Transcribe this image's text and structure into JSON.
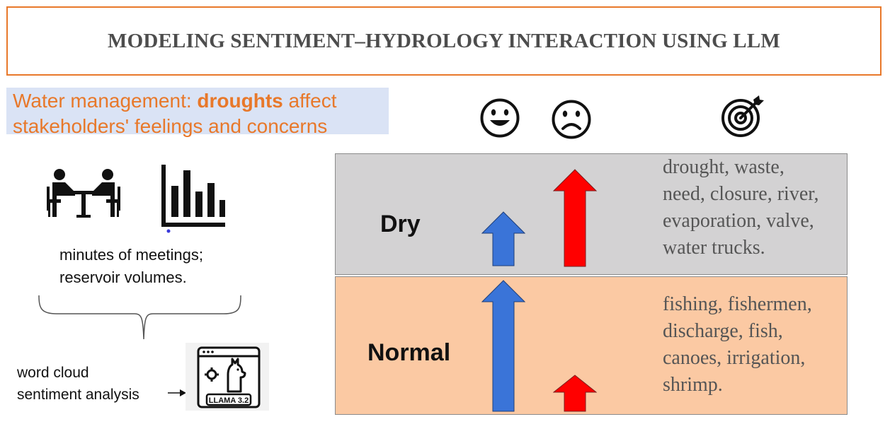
{
  "title": "MODELING SENTIMENT–HYDROLOGY INTERACTION USING LLM",
  "subtitle": {
    "part1": "Water management: ",
    "bold": "droughts",
    "part2": " affect",
    "line2": "stakeholders' feelings and concerns"
  },
  "data_sources": {
    "line1": "minutes of meetings;",
    "line2": "reservoir volumes."
  },
  "analysis": {
    "line1": "word cloud",
    "line2": "sentiment analysis",
    "llm_label": "LLAMA 3.2"
  },
  "icons": [
    "meeting-icon",
    "bar-chart-icon",
    "happy-face-icon",
    "sad-face-icon",
    "target-icon",
    "llama-icon"
  ],
  "panels": {
    "dry": {
      "label": "Dry",
      "words": [
        "drought, waste,",
        "need, closure, river,",
        "evaporation, valve,",
        "water trucks."
      ],
      "positive_level": "low",
      "negative_level": "high"
    },
    "normal": {
      "label": "Normal",
      "words": [
        "fishing, fishermen,",
        "discharge, fish,",
        "canoes, irrigation,",
        "shrimp."
      ],
      "positive_level": "high",
      "negative_level": "low"
    }
  },
  "colors": {
    "accent": "#e8782a",
    "subtitle_bg": "#dae3f5",
    "dry_bg": "#d3d2d3",
    "normal_bg": "#fbc9a3",
    "positive_arrow": "#3a74d8",
    "negative_arrow": "#ff0000"
  }
}
